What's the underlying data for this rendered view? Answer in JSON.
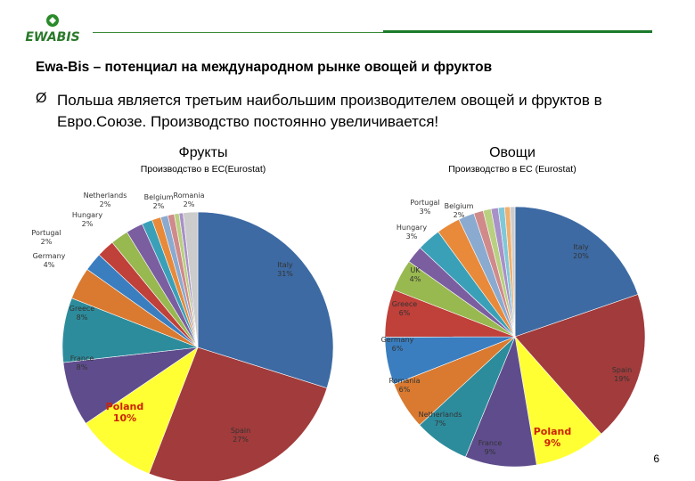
{
  "header": {
    "logo_text": "EWABIS",
    "title": "Ewa-Bis – потенциал на международном рынке овощей и фруктов"
  },
  "bullet": {
    "arrow": "Ø",
    "text": "Польша является третьим наибольшим производителем овощей и фруктов в Евро.Союзе. Производство постоянно увеличивается!"
  },
  "colors": {
    "accent_green": "#1a7a2a",
    "highlight_yellow": "#ffff00",
    "highlight_text": "#cc2200"
  },
  "charts": {
    "fruits": {
      "heading": "Фрукты",
      "subtitle": "Производство в ЕС(Eurostat)"
    },
    "vegetables": {
      "heading": "Овощи",
      "subtitle": "Производство в ЕС (Eurostat)"
    }
  },
  "chart_data": [
    {
      "type": "pie",
      "title": "Фрукты",
      "subtitle": "Производство в ЕС(Eurostat)",
      "slices": [
        {
          "name": "Italy",
          "label": "31%",
          "value": 31,
          "color": "#3d6aa3"
        },
        {
          "name": "Spain",
          "label": "27%",
          "value": 27,
          "color": "#a23b3b"
        },
        {
          "name": "Poland",
          "label": "10%",
          "value": 10,
          "color": "#ffff33",
          "highlight": true
        },
        {
          "name": "France",
          "label": "8%",
          "value": 8,
          "color": "#5e4c8c"
        },
        {
          "name": "Greece",
          "label": "8%",
          "value": 8,
          "color": "#2c8c9c"
        },
        {
          "name": "Germany",
          "label": "4%",
          "value": 4,
          "color": "#d97a30"
        },
        {
          "name": "Portugal",
          "label": "2%",
          "value": 2.3,
          "color": "#3a7ec0"
        },
        {
          "name": "Hungary",
          "label": "2%",
          "value": 2.2,
          "color": "#c0403a"
        },
        {
          "name": "Netherlands",
          "label": "2%",
          "value": 2.2,
          "color": "#98b850"
        },
        {
          "name": "Belgium",
          "label": "2%",
          "value": 2.1,
          "color": "#7a5ea0"
        },
        {
          "name": "",
          "label": "",
          "value": 1.3,
          "color": "#3aa0b8"
        },
        {
          "name": "",
          "label": "",
          "value": 1.1,
          "color": "#e88a3a"
        },
        {
          "name": "",
          "label": "",
          "value": 0.9,
          "color": "#8aaad0"
        },
        {
          "name": "",
          "label": "",
          "value": 0.8,
          "color": "#d08a8a"
        },
        {
          "name": "",
          "label": "",
          "value": 0.6,
          "color": "#b8d080"
        },
        {
          "name": "",
          "label": "",
          "value": 0.5,
          "color": "#a890c8"
        },
        {
          "name": "Romania",
          "label": "2%",
          "value": 1.8,
          "color": "#cccccc"
        }
      ]
    },
    {
      "type": "pie",
      "title": "Овощи",
      "subtitle": "Производство в ЕС (Eurostat)",
      "slices": [
        {
          "name": "Italy",
          "label": "20%",
          "value": 20,
          "color": "#3d6aa3"
        },
        {
          "name": "Spain",
          "label": "19%",
          "value": 19,
          "color": "#a23b3b"
        },
        {
          "name": "Poland",
          "label": "9%",
          "value": 9,
          "color": "#ffff33",
          "highlight": true
        },
        {
          "name": "France",
          "label": "9%",
          "value": 9,
          "color": "#5e4c8c"
        },
        {
          "name": "Netherlands",
          "label": "7%",
          "value": 7,
          "color": "#2c8c9c"
        },
        {
          "name": "Romania",
          "label": "6%",
          "value": 6,
          "color": "#d97a30"
        },
        {
          "name": "Germany",
          "label": "6%",
          "value": 6,
          "color": "#3a7ec0"
        },
        {
          "name": "Greece",
          "label": "6%",
          "value": 6,
          "color": "#c0403a"
        },
        {
          "name": "UK",
          "label": "4%",
          "value": 4,
          "color": "#98b850"
        },
        {
          "name": "",
          "label": "",
          "value": 2.2,
          "color": "#7a5ea0"
        },
        {
          "name": "Hungary",
          "label": "3%",
          "value": 3,
          "color": "#3aa0b8"
        },
        {
          "name": "Portugal",
          "label": "3%",
          "value": 3,
          "color": "#e88a3a"
        },
        {
          "name": "Belgium",
          "label": "2%",
          "value": 2,
          "color": "#8aaad0"
        },
        {
          "name": "",
          "label": "",
          "value": 1.2,
          "color": "#d08a8a"
        },
        {
          "name": "",
          "label": "",
          "value": 1.0,
          "color": "#b8d080"
        },
        {
          "name": "",
          "label": "",
          "value": 0.9,
          "color": "#a890c8"
        },
        {
          "name": "",
          "label": "",
          "value": 0.8,
          "color": "#80c8d8"
        },
        {
          "name": "",
          "label": "",
          "value": 0.7,
          "color": "#f0b070"
        },
        {
          "name": "",
          "label": "",
          "value": 0.6,
          "color": "#cccccc"
        }
      ]
    }
  ],
  "footer": {
    "page_number": "6"
  }
}
